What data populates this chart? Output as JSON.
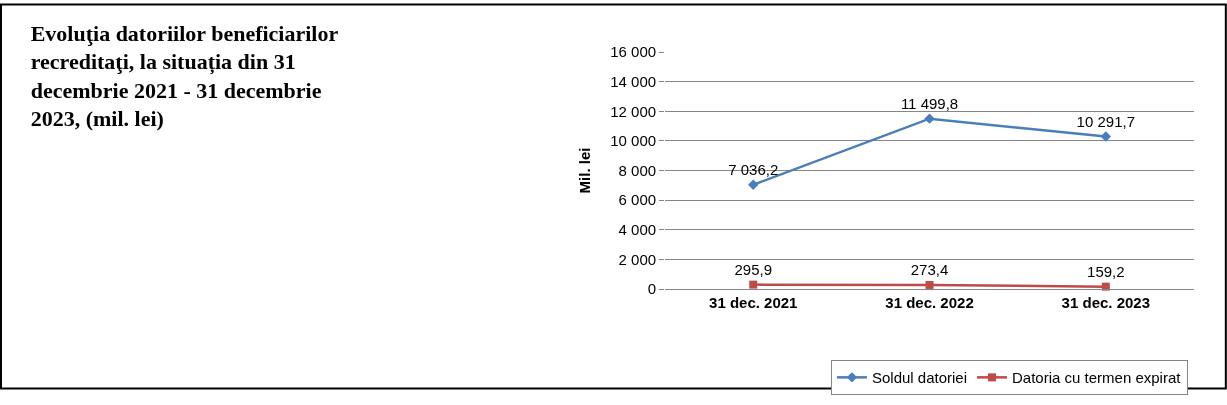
{
  "chart_data": {
    "type": "line",
    "title": "Evoluţia datoriilor beneficiarilor recreditaţi, la situația din 31 decembrie 2021 - 31 decembrie 2023, (mil. lei)",
    "ylabel": "Mil. lei",
    "categories": [
      "31 dec. 2021",
      "31 dec. 2022",
      "31 dec. 2023"
    ],
    "series": [
      {
        "name": "Soldul datoriei",
        "color": "#4a7ebb",
        "marker": "diamond",
        "values": [
          7036.2,
          11499.8,
          10291.7
        ],
        "value_labels": [
          "7 036,2",
          "11 499,8",
          "10 291,7"
        ]
      },
      {
        "name": "Datoria cu termen expirat",
        "color": "#be4b48",
        "marker": "square",
        "values": [
          295.9,
          273.4,
          159.2
        ],
        "value_labels": [
          "295,9",
          "273,4",
          "159,2"
        ]
      }
    ],
    "ylim": [
      0,
      16000
    ],
    "yticks": [
      0,
      {
        "value": 2000,
        "label": "2 000"
      },
      {
        "value": 4000,
        "label": "4 000"
      },
      {
        "value": 6000,
        "label": "6 000"
      },
      {
        "value": 8000,
        "label": "8 000"
      },
      {
        "value": 10000,
        "label": "10 000"
      },
      {
        "value": 12000,
        "label": "12 000"
      },
      {
        "value": 14000,
        "label": "14 000"
      },
      {
        "value": 16000,
        "label": "16 000"
      }
    ],
    "grid": "y",
    "legend": "bottom right"
  }
}
